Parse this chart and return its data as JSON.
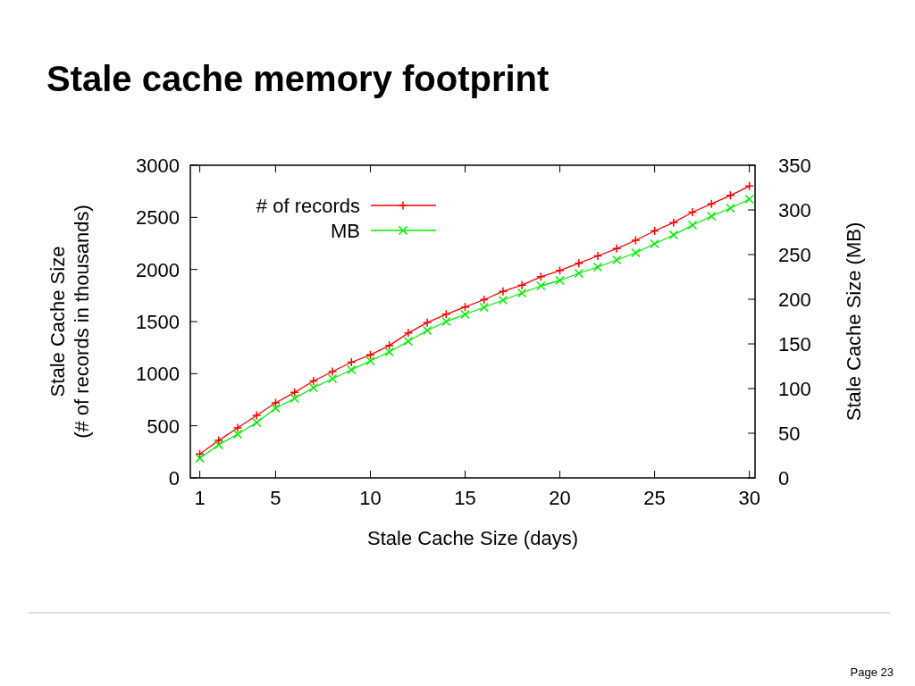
{
  "chart_data": {
    "type": "line",
    "title": "Stale cache memory footprint",
    "xlabel": "Stale Cache Size (days)",
    "ylabel": "Stale Cache Size\n(# of records in thousands)",
    "y2label": "Stale Cache Size (MB)",
    "x": [
      1,
      2,
      3,
      4,
      5,
      6,
      7,
      8,
      9,
      10,
      11,
      12,
      13,
      14,
      15,
      16,
      17,
      18,
      19,
      20,
      21,
      22,
      23,
      24,
      25,
      26,
      27,
      28,
      29,
      30
    ],
    "xlim": [
      0.5,
      30.3
    ],
    "xticks": [
      1,
      5,
      10,
      15,
      20,
      25,
      30
    ],
    "ylim": [
      0,
      3000
    ],
    "yticks": [
      0,
      500,
      1000,
      1500,
      2000,
      2500,
      3000
    ],
    "y2lim": [
      0,
      350
    ],
    "y2ticks": [
      0,
      50,
      100,
      150,
      200,
      250,
      300,
      350
    ],
    "series": [
      {
        "name": "# of records",
        "color": "#ff0000",
        "marker": "plus",
        "values": [
          230,
          360,
          480,
          600,
          720,
          820,
          930,
          1020,
          1110,
          1180,
          1270,
          1390,
          1490,
          1570,
          1640,
          1710,
          1790,
          1850,
          1930,
          1990,
          2060,
          2130,
          2200,
          2280,
          2370,
          2450,
          2550,
          2630,
          2710,
          2800
        ]
      },
      {
        "name": "MB",
        "color": "#00ee00",
        "marker": "cross",
        "axis": "y2",
        "values": [
          22,
          37,
          49,
          62,
          78,
          89,
          101,
          111,
          121,
          131,
          141,
          153,
          165,
          175,
          183,
          191,
          199,
          207,
          215,
          221,
          229,
          236,
          244,
          252,
          262,
          272,
          283,
          293,
          302,
          312
        ]
      }
    ],
    "legend": "top left",
    "grid": false,
    "line_style": "solid",
    "annotations": [
      "Page 23"
    ]
  }
}
